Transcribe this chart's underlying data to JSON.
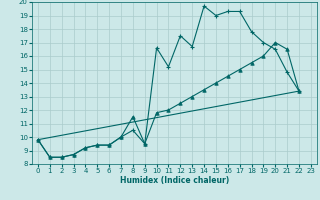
{
  "xlabel": "Humidex (Indice chaleur)",
  "xlim": [
    -0.5,
    23.5
  ],
  "ylim": [
    8,
    20
  ],
  "xticks": [
    0,
    1,
    2,
    3,
    4,
    5,
    6,
    7,
    8,
    9,
    10,
    11,
    12,
    13,
    14,
    15,
    16,
    17,
    18,
    19,
    20,
    21,
    22,
    23
  ],
  "yticks": [
    8,
    9,
    10,
    11,
    12,
    13,
    14,
    15,
    16,
    17,
    18,
    19,
    20
  ],
  "bg_color": "#cce8e8",
  "line_color": "#006666",
  "grid_color": "#aacccc",
  "series1_x": [
    0,
    1,
    2,
    3,
    4,
    5,
    6,
    7,
    8,
    9,
    10,
    11,
    12,
    13,
    14,
    15,
    16,
    17,
    18,
    19,
    20,
    21,
    22
  ],
  "series1_y": [
    9.8,
    8.5,
    8.5,
    8.7,
    9.2,
    9.4,
    9.4,
    10.0,
    10.5,
    9.5,
    16.6,
    15.2,
    17.5,
    16.7,
    19.7,
    19.0,
    19.3,
    19.3,
    17.8,
    17.0,
    16.5,
    14.8,
    13.4
  ],
  "series2_x": [
    0,
    1,
    2,
    3,
    4,
    5,
    6,
    7,
    8,
    9,
    10,
    11,
    12,
    13,
    14,
    15,
    16,
    17,
    18,
    19,
    20,
    21,
    22
  ],
  "series2_y": [
    9.8,
    8.5,
    8.5,
    8.7,
    9.2,
    9.4,
    9.4,
    10.0,
    11.5,
    9.5,
    11.8,
    12.0,
    12.5,
    13.0,
    13.5,
    14.0,
    14.5,
    15.0,
    15.5,
    16.0,
    17.0,
    16.5,
    13.4
  ],
  "series3_x": [
    0,
    22
  ],
  "series3_y": [
    9.8,
    13.4
  ]
}
